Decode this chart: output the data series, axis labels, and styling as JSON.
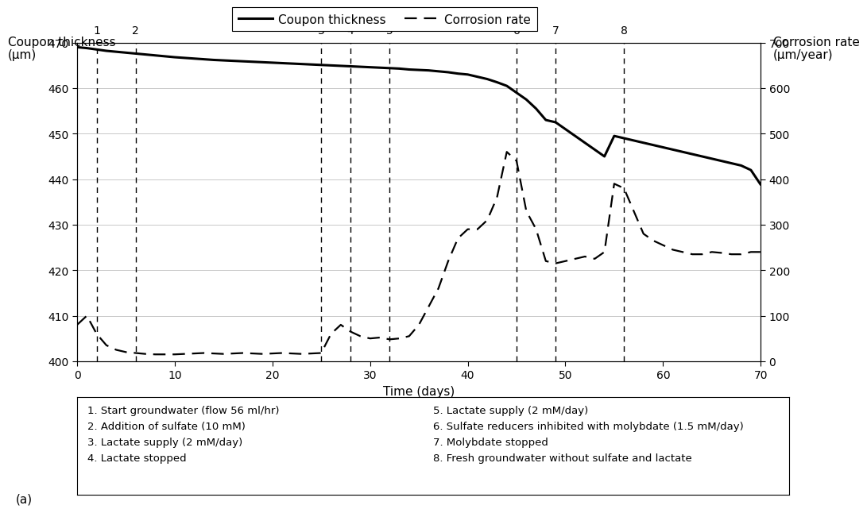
{
  "title_left_line1": "Coupon thickness",
  "title_left_line2": "(μm)",
  "title_right_line1": "Corrosion rate",
  "title_right_line2": "(μm/year)",
  "xlabel": "Time (days)",
  "xlim": [
    0,
    70
  ],
  "ylim_left": [
    400,
    470
  ],
  "ylim_right": [
    0,
    700
  ],
  "yticks_left": [
    400,
    410,
    420,
    430,
    440,
    450,
    460,
    470
  ],
  "yticks_right": [
    0,
    100,
    200,
    300,
    400,
    500,
    600,
    700
  ],
  "xticks": [
    0,
    10,
    20,
    30,
    40,
    50,
    60,
    70
  ],
  "vlines": [
    2,
    6,
    25,
    28,
    32,
    45,
    49,
    56
  ],
  "vline_labels": [
    "1",
    "2",
    "3",
    "4",
    "5",
    "6",
    "7",
    "8"
  ],
  "legend_labels": [
    "Coupon thickness",
    "Corrosion rate"
  ],
  "ann_left": "1. Start groundwater (flow 56 ml/hr)\n2. Addition of sulfate (10 mM)\n3. Lactate supply (2 mM/day)\n4. Lactate stopped",
  "ann_right": "5. Lactate supply (2 mM/day)\n6. Sulfate reducers inhibited with molybdate (1.5 mM/day)\n7. Molybdate stopped\n8. Fresh groundwater without sulfate and lactate",
  "panel_label": "(a)",
  "thickness_x": [
    0,
    1,
    2,
    3,
    4,
    5,
    6,
    7,
    8,
    9,
    10,
    12,
    14,
    16,
    18,
    20,
    22,
    24,
    25,
    26,
    27,
    28,
    29,
    30,
    31,
    32,
    33,
    34,
    35,
    36,
    37,
    38,
    39,
    40,
    41,
    42,
    43,
    44,
    45,
    46,
    47,
    48,
    49,
    50,
    51,
    52,
    53,
    54,
    55,
    56,
    57,
    58,
    59,
    60,
    61,
    62,
    63,
    64,
    65,
    66,
    67,
    68,
    69,
    70
  ],
  "thickness_y": [
    469,
    468.8,
    468.5,
    468.2,
    468.0,
    467.8,
    467.6,
    467.4,
    467.2,
    467.0,
    466.8,
    466.5,
    466.2,
    466.0,
    465.8,
    465.6,
    465.4,
    465.2,
    465.1,
    465.0,
    464.9,
    464.8,
    464.7,
    464.6,
    464.5,
    464.4,
    464.3,
    464.1,
    464.0,
    463.9,
    463.7,
    463.5,
    463.2,
    463.0,
    462.5,
    462.0,
    461.3,
    460.5,
    459.0,
    457.5,
    455.5,
    453.0,
    452.5,
    451.0,
    449.5,
    448.0,
    446.5,
    445.0,
    449.5,
    449.0,
    448.5,
    448.0,
    447.5,
    447.0,
    446.5,
    446.0,
    445.5,
    445.0,
    444.5,
    444.0,
    443.5,
    443.0,
    442.0,
    438.8
  ],
  "corrosion_x": [
    0,
    1,
    2,
    3,
    4,
    5,
    6,
    7,
    8,
    9,
    10,
    11,
    12,
    13,
    14,
    15,
    16,
    17,
    18,
    19,
    20,
    21,
    22,
    23,
    24,
    25,
    26,
    27,
    28,
    29,
    30,
    31,
    32,
    33,
    34,
    35,
    36,
    37,
    38,
    39,
    40,
    41,
    42,
    43,
    44,
    45,
    46,
    47,
    48,
    49,
    50,
    51,
    52,
    53,
    54,
    55,
    56,
    57,
    58,
    59,
    60,
    61,
    62,
    63,
    64,
    65,
    66,
    67,
    68,
    69,
    70
  ],
  "corrosion_y": [
    80,
    100,
    60,
    35,
    25,
    20,
    18,
    16,
    15,
    15,
    15,
    16,
    17,
    18,
    17,
    16,
    17,
    18,
    17,
    16,
    17,
    18,
    17,
    16,
    17,
    18,
    60,
    80,
    65,
    55,
    50,
    52,
    48,
    50,
    55,
    80,
    120,
    160,
    220,
    270,
    290,
    290,
    310,
    360,
    460,
    440,
    330,
    290,
    220,
    215,
    220,
    225,
    230,
    225,
    240,
    390,
    380,
    330,
    280,
    265,
    255,
    245,
    240,
    235,
    235,
    240,
    238,
    235,
    235,
    240,
    240
  ]
}
